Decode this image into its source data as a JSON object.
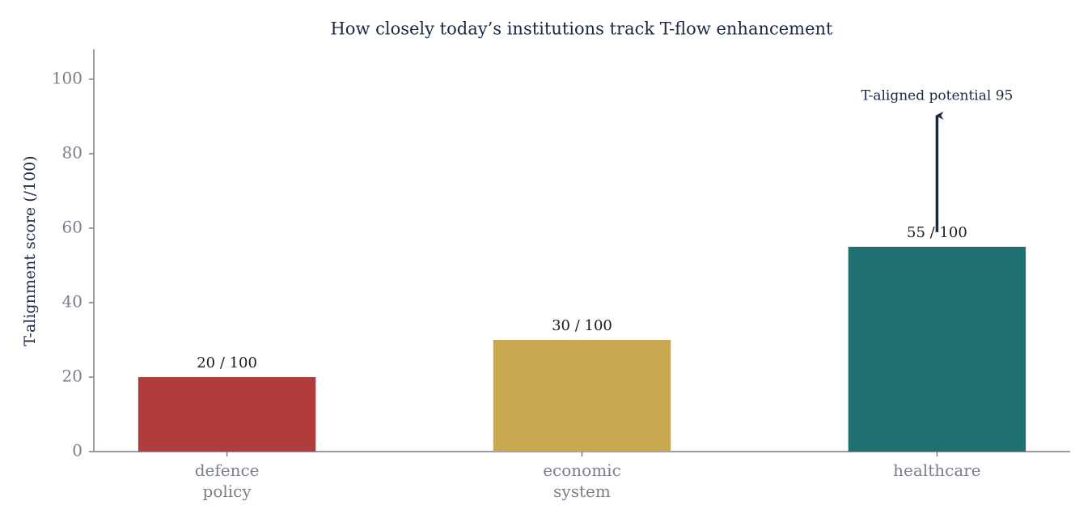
{
  "chart_data": {
    "type": "bar",
    "title": "How closely today’s institutions track T-flow enhancement",
    "ylabel": "T-alignment score (/100)",
    "categories": [
      "defence policy",
      "economic system",
      "healthcare"
    ],
    "values": [
      20,
      30,
      55
    ],
    "value_labels": [
      "20 / 100",
      "30 / 100",
      "55 / 100"
    ],
    "colors": [
      "#b03c3c",
      "#c8a850",
      "#1f7070"
    ],
    "ylim": [
      0,
      108
    ],
    "yticks": [
      0,
      20,
      40,
      60,
      80,
      100
    ],
    "grid": false,
    "annotation": {
      "text": "T-aligned potential 95",
      "value": 95,
      "category": 2
    }
  }
}
